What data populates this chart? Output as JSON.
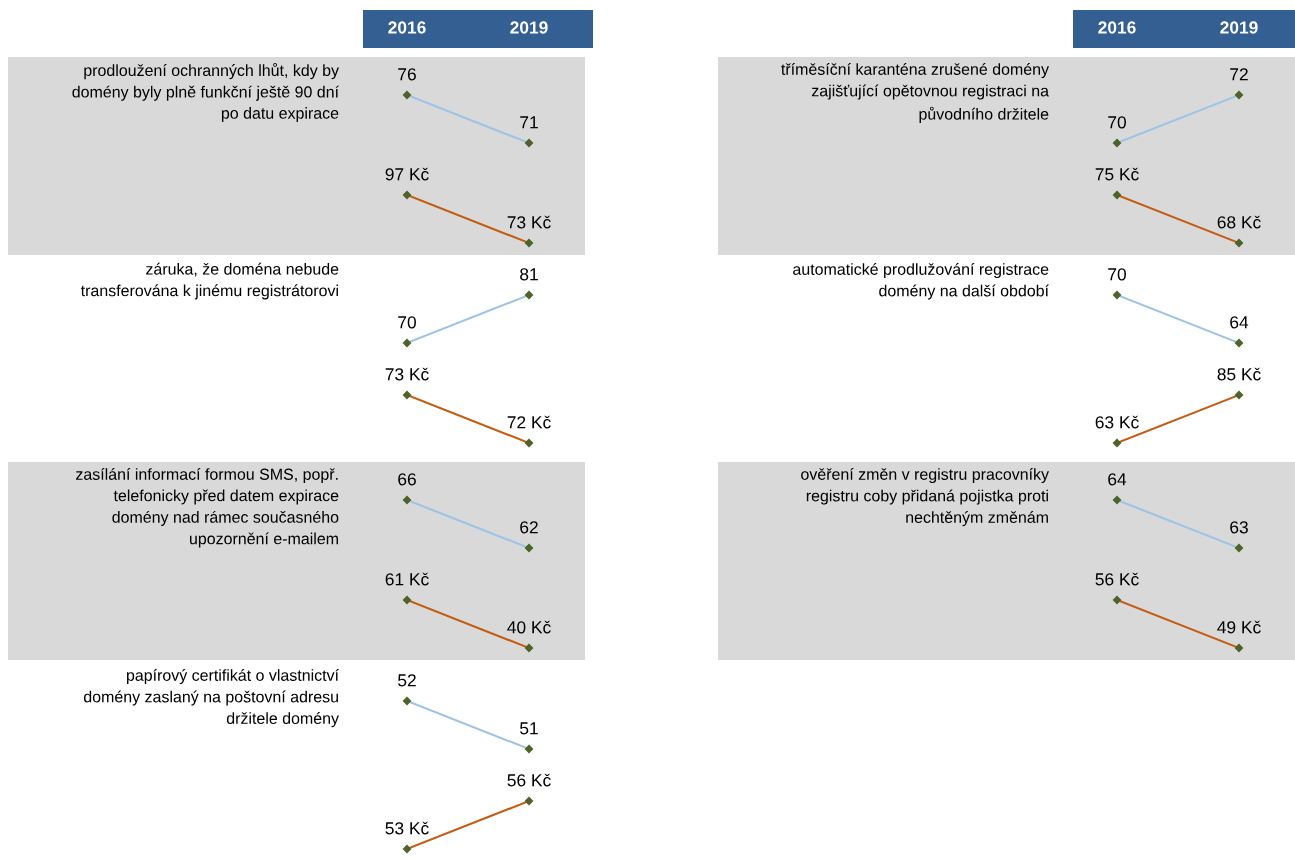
{
  "chart_data": [
    {
      "type": "line",
      "title": "prodloužení ochranných lhůt, kdy by\ndomény byly plně funkční ještě 90 dní\npo datu expirace",
      "categories": [
        "2016",
        "2019"
      ],
      "tick_labels": "x",
      "marker": "diamond",
      "line_style": "solid",
      "data_labels": true,
      "series": [
        {
          "color": "#9dc3e6",
          "values": [
            76,
            71
          ]
        }
      ]
    },
    {
      "type": "line",
      "categories": [
        null,
        null
      ],
      "marker": "diamond",
      "line_style": "solid",
      "series": [
        {
          "color": "#c55a11",
          "values": [
            97,
            73
          ],
          "value_labels": [
            "97 Kč",
            "73 Kč"
          ]
        }
      ]
    },
    {
      "type": "line",
      "title": "tříměsíční karanténa zrušené domény\nzajišťující opětovnou registraci na\npůvodního držitele",
      "categories": [
        "2016",
        "2019"
      ],
      "tick_labels": "x",
      "marker": "diamond",
      "line_style": "solid",
      "data_labels": true,
      "series": [
        {
          "color": "#9dc3e6",
          "values": [
            70,
            72
          ]
        }
      ]
    },
    {
      "type": "line",
      "categories": [
        null,
        null
      ],
      "marker": "diamond",
      "line_style": "solid",
      "series": [
        {
          "color": "#c55a11",
          "values": [
            75,
            68
          ],
          "value_labels": [
            "75 Kč",
            "68 Kč"
          ]
        }
      ]
    },
    {
      "type": "line",
      "title": "záruka, že doména nebude\ntransferována k jinému registrátorovi",
      "categories": [
        null,
        null
      ],
      "marker": "diamond",
      "line_style": "solid",
      "data_labels": true,
      "series": [
        {
          "color": "#9dc3e6",
          "values": [
            70,
            81
          ]
        }
      ]
    },
    {
      "type": "line",
      "categories": [
        null,
        null
      ],
      "marker": "diamond",
      "line_style": "solid",
      "series": [
        {
          "color": "#c55a11",
          "values": [
            73,
            72
          ],
          "value_labels": [
            "73 Kč",
            "72 Kč"
          ]
        }
      ]
    },
    {
      "type": "line",
      "title": "automatické prodlužování registrace\ndomény na další období",
      "categories": [
        null,
        null
      ],
      "marker": "diamond",
      "line_style": "solid",
      "data_labels": true,
      "series": [
        {
          "color": "#9dc3e6",
          "values": [
            70,
            64
          ]
        }
      ]
    },
    {
      "type": "line",
      "categories": [
        null,
        null
      ],
      "marker": "diamond",
      "line_style": "solid",
      "series": [
        {
          "color": "#c55a11",
          "values": [
            63,
            85
          ],
          "value_labels": [
            "63 Kč",
            "85 Kč"
          ]
        }
      ]
    },
    {
      "type": "line",
      "title": "zasílání informací formou SMS, popř.\ntelefonicky před datem expirace\ndomény nad rámec současného\nupozornění e-mailem",
      "categories": [
        null,
        null
      ],
      "marker": "diamond",
      "line_style": "solid",
      "data_labels": true,
      "series": [
        {
          "color": "#9dc3e6",
          "values": [
            66,
            62
          ]
        }
      ]
    },
    {
      "type": "line",
      "categories": [
        null,
        null
      ],
      "marker": "diamond",
      "line_style": "solid",
      "series": [
        {
          "color": "#c55a11",
          "values": [
            61,
            40
          ],
          "value_labels": [
            "61 Kč",
            "40 Kč"
          ]
        }
      ]
    },
    {
      "type": "line",
      "title": "ověření změn v registru pracovníky\nregistru coby přidaná pojistka proti\nnechtěným změnám",
      "categories": [
        null,
        null
      ],
      "marker": "diamond",
      "line_style": "solid",
      "data_labels": true,
      "series": [
        {
          "color": "#9dc3e6",
          "values": [
            64,
            63
          ]
        }
      ]
    },
    {
      "type": "line",
      "categories": [
        null,
        null
      ],
      "marker": "diamond",
      "line_style": "solid",
      "series": [
        {
          "color": "#c55a11",
          "values": [
            56,
            49
          ],
          "value_labels": [
            "56 Kč",
            "49 Kč"
          ]
        }
      ]
    },
    {
      "type": "line",
      "title": "papírový certifikát o vlastnictví\ndomény zaslaný na poštovní adresu\ndržitele domény",
      "categories": [
        null,
        null
      ],
      "marker": "diamond",
      "line_style": "solid",
      "data_labels": true,
      "series": [
        {
          "color": "#9dc3e6",
          "values": [
            52,
            51
          ]
        }
      ]
    },
    {
      "type": "line",
      "categories": [
        null,
        null
      ],
      "marker": "diamond",
      "line_style": "solid",
      "series": [
        {
          "color": "#c55a11",
          "values": [
            53,
            56
          ],
          "value_labels": [
            "53 Kč",
            "56 Kč"
          ]
        }
      ]
    }
  ]
}
